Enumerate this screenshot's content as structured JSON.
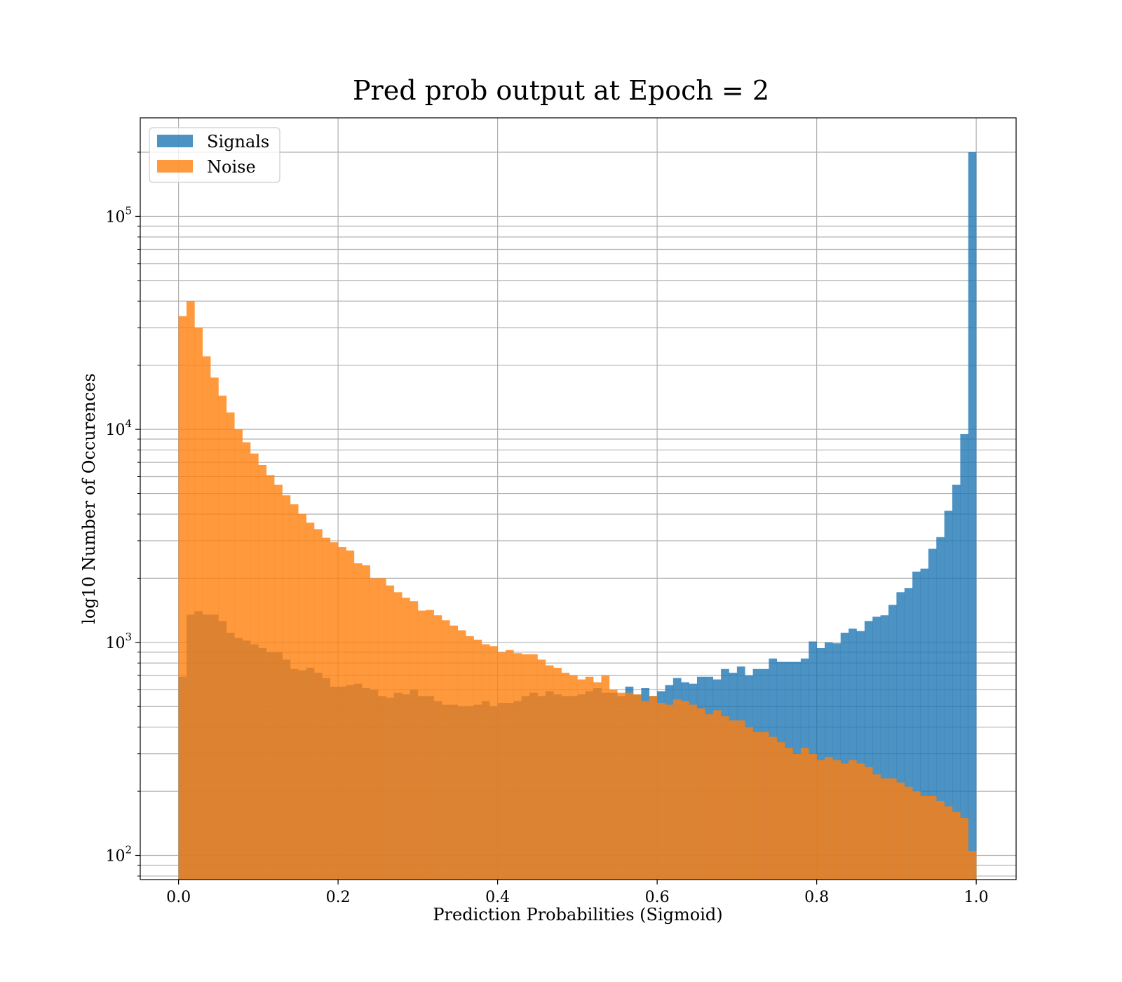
{
  "chart_data": {
    "type": "bar",
    "title": "Pred prob output at Epoch = 2",
    "xlabel": "Prediction Probabilities (Sigmoid)",
    "ylabel": "log10 Number of Occurences",
    "xlim": [
      -0.048,
      1.05
    ],
    "ylim": [
      77,
      290000
    ],
    "yscale": "log",
    "grid": true,
    "bins": 100,
    "bin_range": [
      0,
      1
    ],
    "x_ticks": [
      {
        "value": 0.0,
        "label": "0.0"
      },
      {
        "value": 0.2,
        "label": "0.2"
      },
      {
        "value": 0.4,
        "label": "0.4"
      },
      {
        "value": 0.6,
        "label": "0.6"
      },
      {
        "value": 0.8,
        "label": "0.8"
      },
      {
        "value": 1.0,
        "label": "1.0"
      }
    ],
    "y_ticks": [
      {
        "value": 100,
        "base": "10",
        "exp": "2"
      },
      {
        "value": 1000,
        "base": "10",
        "exp": "3"
      },
      {
        "value": 10000,
        "base": "10",
        "exp": "4"
      },
      {
        "value": 100000,
        "base": "10",
        "exp": "5"
      }
    ],
    "legend": {
      "position": "top-left"
    },
    "series": [
      {
        "name": "Signals",
        "color": "#1f77b4",
        "opacity": 0.8,
        "values": [
          690,
          1350,
          1400,
          1350,
          1350,
          1260,
          1110,
          1050,
          1020,
          980,
          940,
          900,
          900,
          830,
          750,
          740,
          760,
          720,
          680,
          620,
          620,
          630,
          640,
          610,
          600,
          560,
          550,
          580,
          570,
          600,
          560,
          560,
          530,
          510,
          510,
          500,
          500,
          510,
          530,
          500,
          520,
          520,
          530,
          560,
          580,
          560,
          590,
          570,
          560,
          560,
          570,
          590,
          610,
          580,
          580,
          560,
          620,
          570,
          610,
          560,
          590,
          630,
          680,
          650,
          640,
          690,
          690,
          670,
          750,
          720,
          770,
          700,
          750,
          750,
          840,
          810,
          810,
          810,
          840,
          1010,
          940,
          1000,
          990,
          1110,
          1160,
          1130,
          1260,
          1320,
          1340,
          1500,
          1720,
          1800,
          2150,
          2220,
          2750,
          3120,
          4150,
          5500,
          9500,
          200000
        ]
      },
      {
        "name": "Noise",
        "color": "#ff7f0e",
        "opacity": 0.8,
        "values": [
          34000,
          40000,
          30000,
          22000,
          17500,
          14400,
          12000,
          10000,
          8700,
          7700,
          6800,
          6100,
          5500,
          4900,
          4450,
          4000,
          3650,
          3400,
          3100,
          2950,
          2800,
          2700,
          2350,
          2300,
          2000,
          2000,
          1850,
          1720,
          1620,
          1560,
          1410,
          1420,
          1340,
          1270,
          1200,
          1140,
          1070,
          1030,
          980,
          960,
          900,
          920,
          890,
          880,
          880,
          830,
          780,
          760,
          720,
          700,
          670,
          690,
          650,
          700,
          600,
          580,
          580,
          570,
          530,
          560,
          520,
          510,
          540,
          530,
          510,
          490,
          460,
          480,
          450,
          430,
          430,
          400,
          380,
          380,
          360,
          340,
          320,
          300,
          320,
          300,
          280,
          290,
          280,
          270,
          280,
          270,
          260,
          240,
          230,
          230,
          220,
          210,
          200,
          190,
          190,
          180,
          170,
          160,
          150,
          105
        ]
      }
    ]
  }
}
